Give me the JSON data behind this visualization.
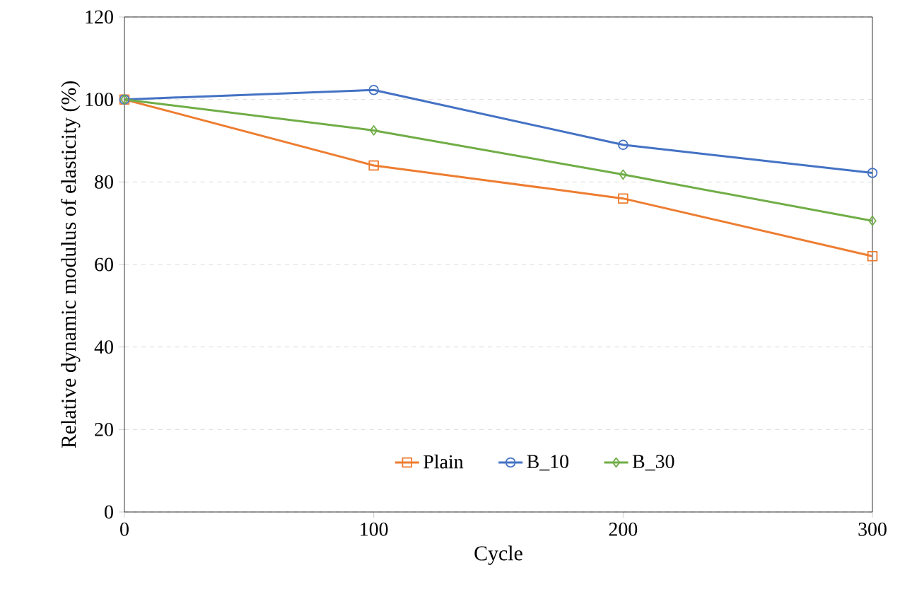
{
  "chart_data": {
    "type": "line",
    "xlabel": "Cycle",
    "ylabel": "Relative dynamic modulus of elasticity (%)",
    "x": [
      0,
      100,
      200,
      300
    ],
    "series": [
      {
        "name": "Plain",
        "color": "#ed7d31",
        "marker": "square",
        "values": [
          100,
          84,
          76,
          62
        ]
      },
      {
        "name": "B_10",
        "color": "#4472c4",
        "marker": "circle",
        "values": [
          100,
          102.3,
          89,
          82.2
        ]
      },
      {
        "name": "B_30",
        "color": "#70ad47",
        "marker": "diamond",
        "values": [
          100,
          92.5,
          81.8,
          70.6
        ]
      }
    ],
    "xlim": [
      0,
      300
    ],
    "xticks": [
      0,
      100,
      200,
      300
    ],
    "ylim": [
      0,
      120
    ],
    "yticks": [
      0,
      20,
      40,
      60,
      80,
      100,
      120
    ],
    "grid": "y",
    "legend": "bottom",
    "line_style": "solid"
  }
}
